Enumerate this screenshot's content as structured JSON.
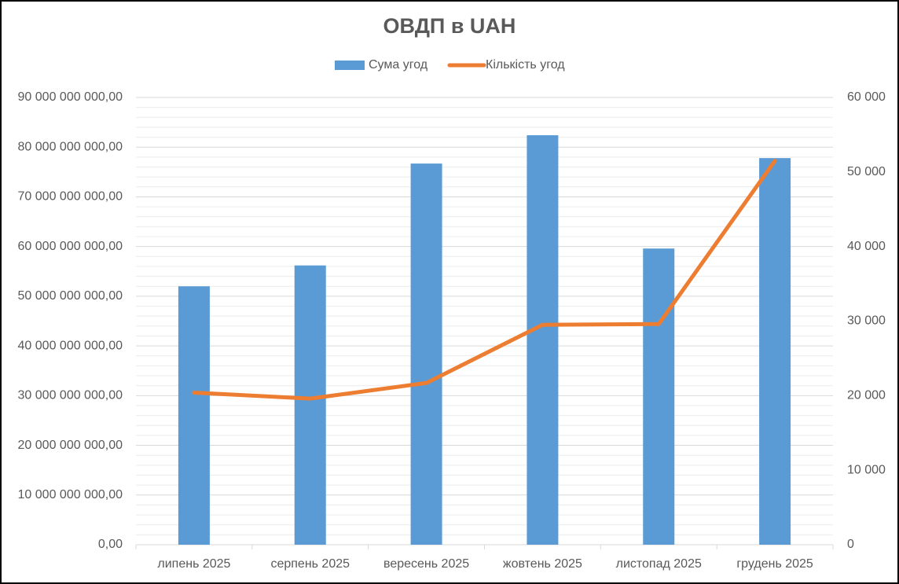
{
  "chart_data": {
    "type": "bar-line",
    "title": "ОВДП в UAH",
    "categories": [
      "липень 2025",
      "серпень 2025",
      "вересень 2025",
      "жовтень 2025",
      "листопад 2025",
      "грудень 2025"
    ],
    "series": [
      {
        "name": "Сума угод",
        "type": "bar",
        "color": "#5b9bd5",
        "values": [
          52000000000,
          56200000000,
          76700000000,
          82400000000,
          59600000000,
          77800000000
        ]
      },
      {
        "name": "Кількість угод",
        "type": "line",
        "axis": "y2",
        "color": "#ed7d31",
        "values": [
          20400,
          19600,
          21700,
          29500,
          29600,
          51500
        ]
      }
    ],
    "ylim": [
      0,
      90000000000
    ],
    "yticks": [
      {
        "value": 0,
        "label": "0,00"
      },
      {
        "value": 10000000000,
        "label": "10 000 000 000,00"
      },
      {
        "value": 20000000000,
        "label": "20 000 000 000,00"
      },
      {
        "value": 30000000000,
        "label": "30 000 000 000,00"
      },
      {
        "value": 40000000000,
        "label": "40 000 000 000,00"
      },
      {
        "value": 50000000000,
        "label": "50 000 000 000,00"
      },
      {
        "value": 60000000000,
        "label": "60 000 000 000,00"
      },
      {
        "value": 70000000000,
        "label": "70 000 000 000,00"
      },
      {
        "value": 80000000000,
        "label": "80 000 000 000,00"
      },
      {
        "value": 90000000000,
        "label": "90 000 000 000,00"
      }
    ],
    "y2lim": [
      0,
      60000
    ],
    "y2ticks": [
      0,
      {
        "value": 10000,
        "label": "10 000"
      },
      {
        "value": 20000,
        "label": "20 000"
      },
      {
        "value": 30000,
        "label": "30 000"
      },
      {
        "value": 40000,
        "label": "40 000"
      },
      {
        "value": 50000,
        "label": "50 000"
      },
      {
        "value": 60000,
        "label": "60 000"
      }
    ],
    "grid": true,
    "legend": "top"
  }
}
